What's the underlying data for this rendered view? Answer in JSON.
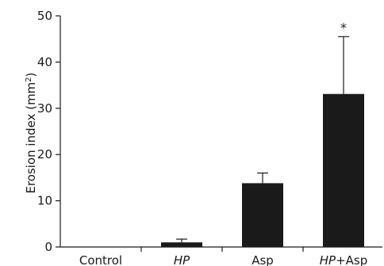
{
  "chart_data": {
    "type": "bar",
    "categories": [
      "Control",
      "HP",
      "Asp",
      "HP+Asp"
    ],
    "category_labels": [
      {
        "parts": [
          {
            "text": "Control",
            "italic": false
          }
        ]
      },
      {
        "parts": [
          {
            "text": "HP",
            "italic": true
          }
        ]
      },
      {
        "parts": [
          {
            "text": "Asp",
            "italic": false
          }
        ]
      },
      {
        "parts": [
          {
            "text": "HP",
            "italic": true
          },
          {
            "text": "+Asp",
            "italic": false
          }
        ]
      }
    ],
    "values": [
      0,
      1.0,
      13.8,
      33.1
    ],
    "error_upper": [
      0,
      0.7,
      2.2,
      12.4
    ],
    "annotations": [
      "",
      "",
      "",
      "*"
    ],
    "ylabel": "Erosion index (mm",
    "ylabel_superscript": "2",
    "ylabel_suffix": ")",
    "ylim": [
      0,
      50
    ],
    "yticks": [
      0,
      10,
      20,
      30,
      40,
      50
    ],
    "grid": false,
    "bar_color": "#1a1a1a"
  }
}
